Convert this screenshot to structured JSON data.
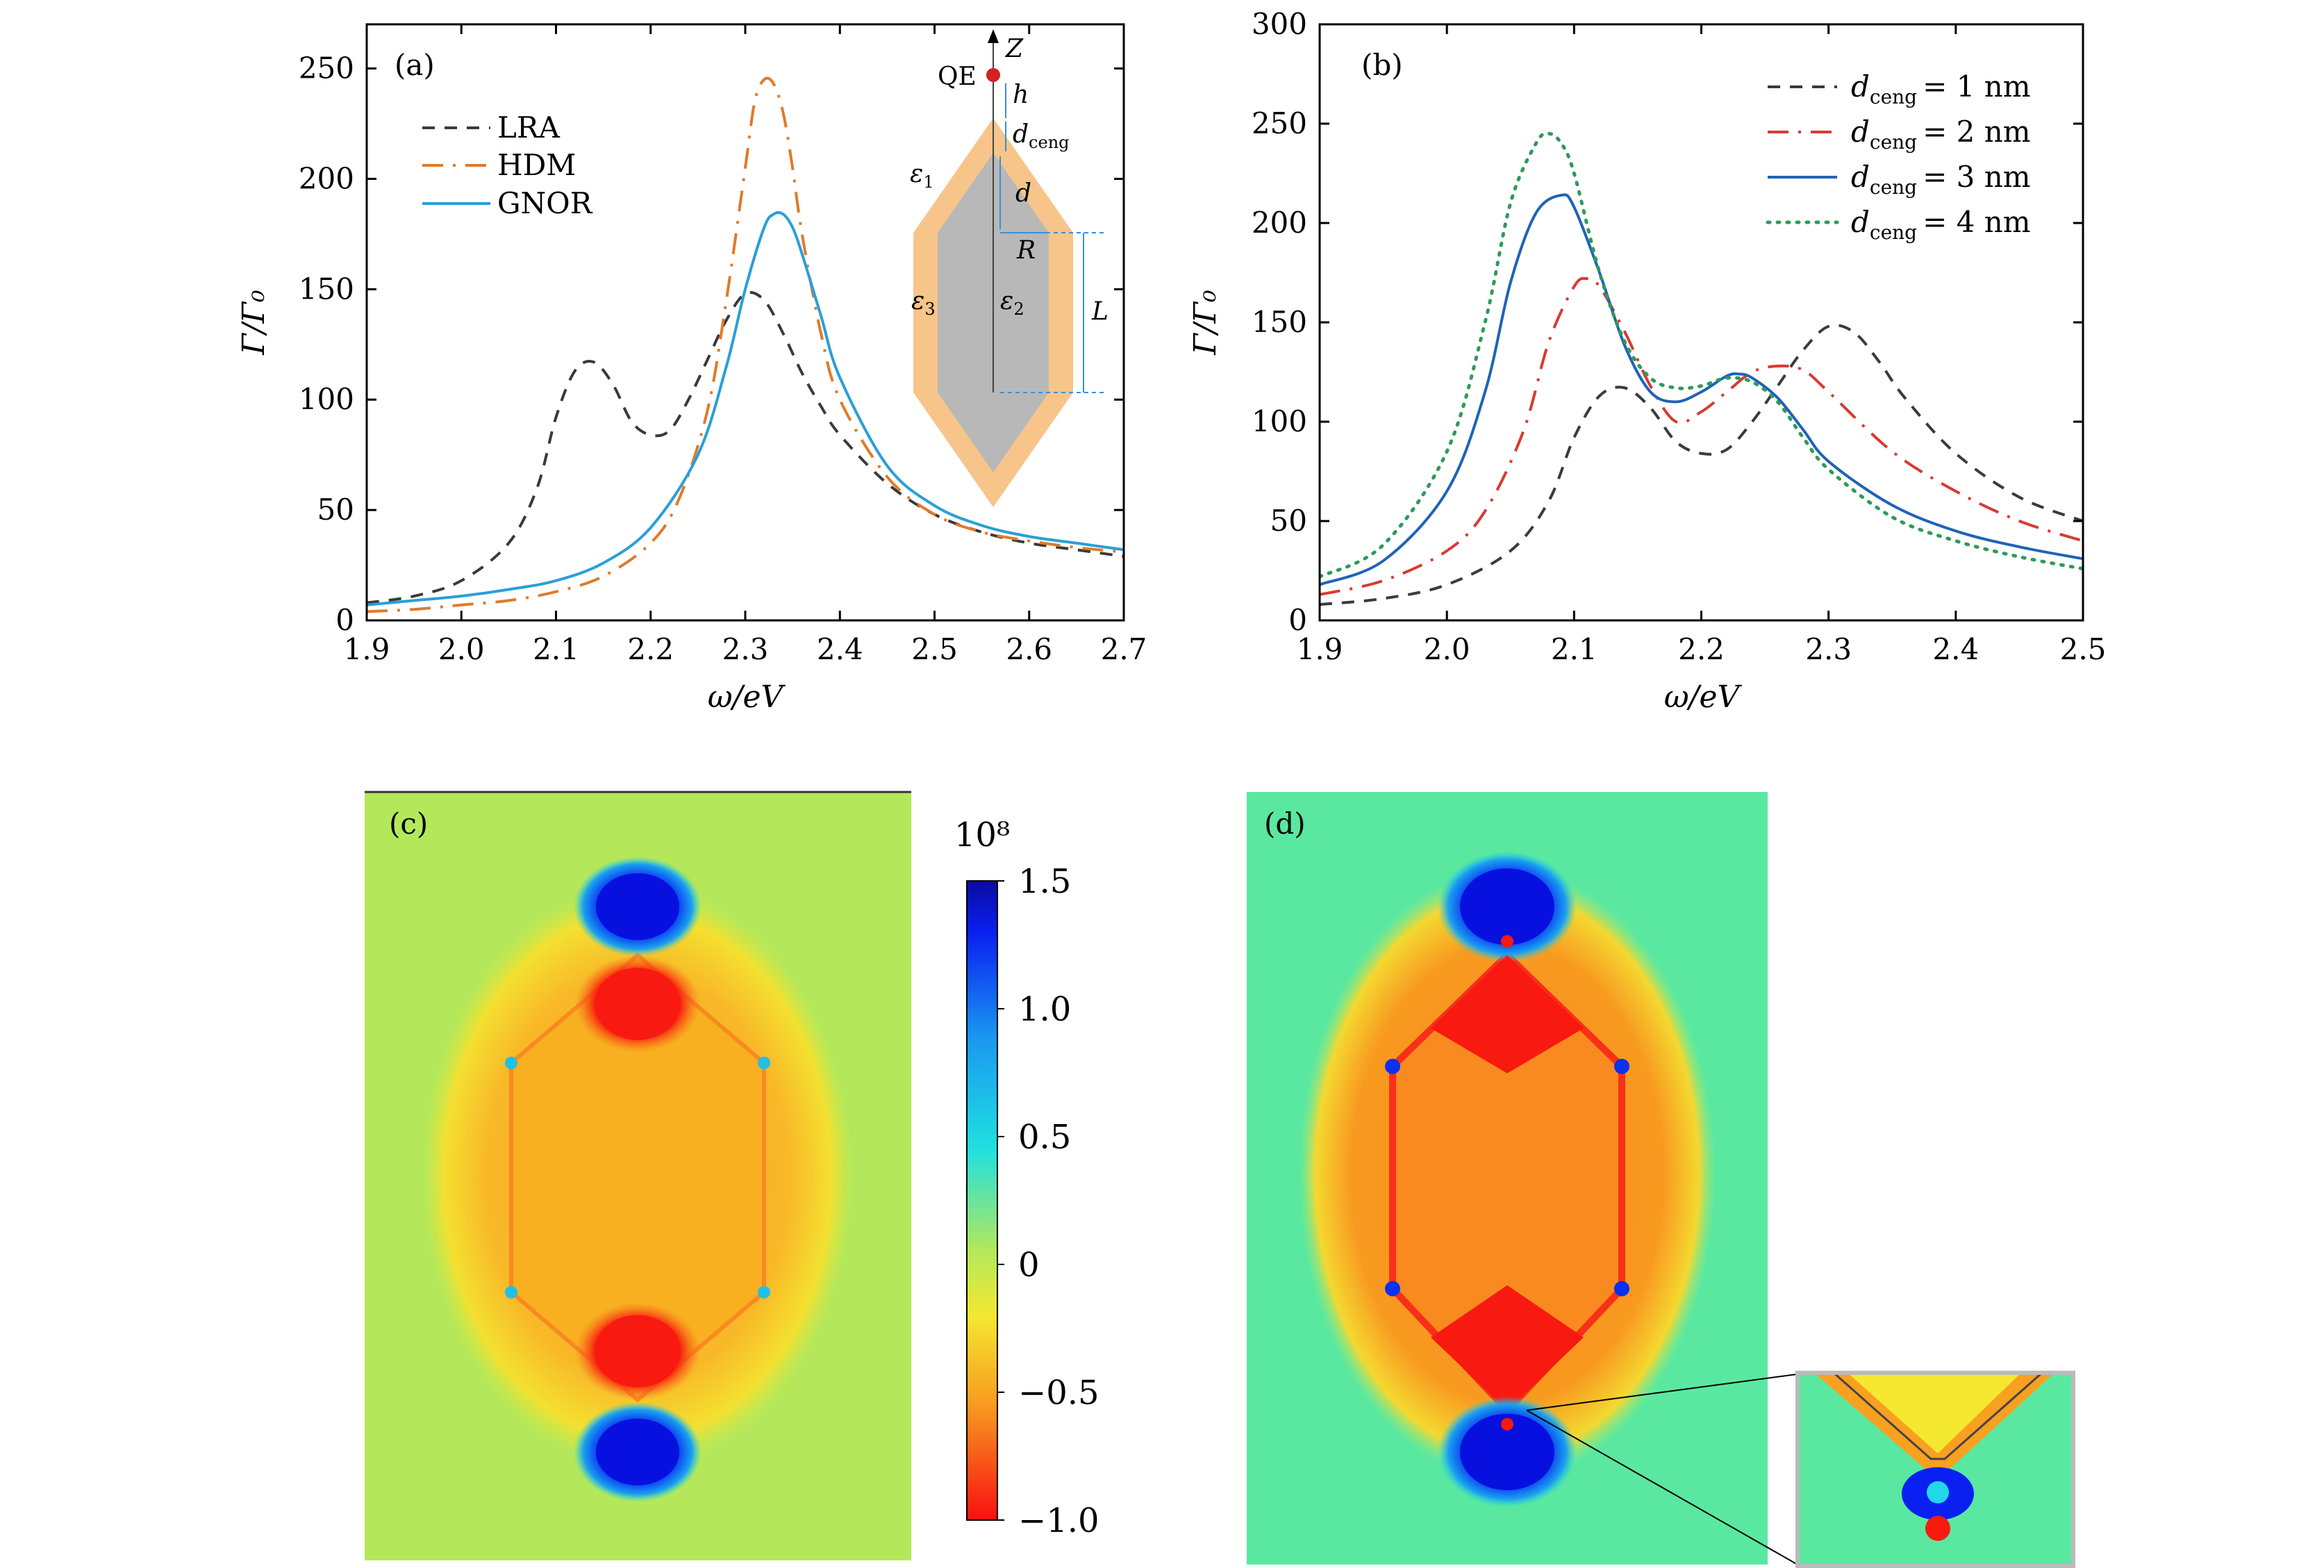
{
  "chart_data": [
    {
      "panel": "(a)",
      "type": "line",
      "xlabel": "ω/eV",
      "ylabel": "Γ/Γ₀",
      "xlim": [
        1.9,
        2.7
      ],
      "ylim": [
        0,
        270
      ],
      "xticks": [
        "1.9",
        "2.0",
        "2.1",
        "2.2",
        "2.3",
        "2.4",
        "2.5",
        "2.6",
        "2.7"
      ],
      "yticks": [
        "0",
        "50",
        "100",
        "150",
        "200",
        "250"
      ],
      "legend_position": "top-left",
      "series": [
        {
          "name": "LRA",
          "color": "#3a3a3a",
          "dash": "dash",
          "x": [
            1.9,
            1.95,
            2.0,
            2.05,
            2.08,
            2.1,
            2.12,
            2.14,
            2.16,
            2.18,
            2.2,
            2.22,
            2.24,
            2.26,
            2.28,
            2.3,
            2.32,
            2.34,
            2.36,
            2.38,
            2.4,
            2.45,
            2.5,
            2.55,
            2.6,
            2.65,
            2.7
          ],
          "y": [
            8,
            11,
            18,
            35,
            60,
            92,
            113,
            117,
            107,
            90,
            84,
            86,
            100,
            118,
            136,
            148,
            145,
            130,
            112,
            97,
            84,
            62,
            48,
            40,
            35,
            32,
            29
          ]
        },
        {
          "name": "HDM",
          "color": "#e07b28",
          "dash": "dashdot",
          "x": [
            1.9,
            1.95,
            2.0,
            2.05,
            2.1,
            2.15,
            2.2,
            2.23,
            2.26,
            2.28,
            2.3,
            2.31,
            2.32,
            2.33,
            2.34,
            2.35,
            2.36,
            2.38,
            2.4,
            2.45,
            2.5,
            2.55,
            2.6,
            2.65,
            2.7
          ],
          "y": [
            4,
            5,
            7,
            9,
            13,
            20,
            35,
            55,
            95,
            145,
            205,
            235,
            245,
            243,
            230,
            205,
            175,
            130,
            100,
            65,
            48,
            40,
            36,
            33,
            31
          ]
        },
        {
          "name": "GNOR",
          "color": "#2a9fd8",
          "dash": "solid",
          "x": [
            1.9,
            1.95,
            2.0,
            2.05,
            2.1,
            2.15,
            2.2,
            2.25,
            2.28,
            2.3,
            2.32,
            2.33,
            2.34,
            2.35,
            2.36,
            2.38,
            2.4,
            2.45,
            2.5,
            2.55,
            2.6,
            2.65,
            2.7
          ],
          "y": [
            7,
            9,
            11,
            14,
            18,
            26,
            42,
            75,
            115,
            150,
            178,
            184,
            184,
            178,
            166,
            138,
            110,
            70,
            52,
            43,
            38,
            35,
            32
          ]
        }
      ]
    },
    {
      "panel": "(b)",
      "type": "line",
      "xlabel": "ω/eV",
      "ylabel": "Γ/Γ₀",
      "xlim": [
        1.9,
        2.5
      ],
      "ylim": [
        0,
        300
      ],
      "xticks": [
        "1.9",
        "2.0",
        "2.1",
        "2.2",
        "2.3",
        "2.4",
        "2.5"
      ],
      "yticks": [
        "0",
        "50",
        "100",
        "150",
        "200",
        "250",
        "300"
      ],
      "legend_position": "top-right",
      "series": [
        {
          "name_main": "d",
          "name_sub": "ceng",
          "name_val": "= 1 nm",
          "color": "#3a3a3a",
          "dash": "dash",
          "x": [
            1.9,
            1.95,
            2.0,
            2.05,
            2.08,
            2.1,
            2.12,
            2.14,
            2.16,
            2.18,
            2.2,
            2.22,
            2.24,
            2.26,
            2.28,
            2.3,
            2.32,
            2.34,
            2.36,
            2.4,
            2.45,
            2.5
          ],
          "y": [
            8,
            11,
            18,
            35,
            60,
            92,
            113,
            117,
            107,
            90,
            84,
            86,
            100,
            118,
            136,
            148,
            145,
            130,
            112,
            84,
            62,
            50
          ]
        },
        {
          "name_main": "d",
          "name_sub": "ceng",
          "name_val": "= 2 nm",
          "color": "#d83a32",
          "dash": "dashdot",
          "x": [
            1.9,
            1.95,
            2.0,
            2.03,
            2.06,
            2.08,
            2.1,
            2.11,
            2.12,
            2.14,
            2.16,
            2.18,
            2.2,
            2.22,
            2.24,
            2.26,
            2.28,
            2.3,
            2.35,
            2.4,
            2.45,
            2.5
          ],
          "y": [
            13,
            20,
            35,
            55,
            95,
            140,
            168,
            172,
            168,
            145,
            118,
            100,
            105,
            115,
            125,
            128,
            126,
            115,
            85,
            65,
            50,
            40
          ]
        },
        {
          "name_main": "d",
          "name_sub": "ceng",
          "name_val": "= 3 nm",
          "color": "#1f63b8",
          "dash": "solid",
          "x": [
            1.9,
            1.95,
            2.0,
            2.03,
            2.05,
            2.07,
            2.09,
            2.1,
            2.12,
            2.14,
            2.16,
            2.18,
            2.2,
            2.22,
            2.23,
            2.24,
            2.26,
            2.28,
            2.3,
            2.35,
            2.4,
            2.45,
            2.5
          ],
          "y": [
            18,
            30,
            65,
            115,
            170,
            205,
            214,
            208,
            175,
            138,
            115,
            110,
            115,
            123,
            124,
            122,
            112,
            96,
            80,
            58,
            45,
            37,
            31
          ]
        },
        {
          "name_main": "d",
          "name_sub": "ceng",
          "name_val": "= 4 nm",
          "color": "#2e9a5a",
          "dash": "dot",
          "x": [
            1.9,
            1.95,
            2.0,
            2.03,
            2.05,
            2.07,
            2.08,
            2.09,
            2.1,
            2.12,
            2.14,
            2.16,
            2.18,
            2.2,
            2.22,
            2.24,
            2.26,
            2.28,
            2.3,
            2.35,
            2.4,
            2.45,
            2.5
          ],
          "y": [
            22,
            38,
            85,
            150,
            210,
            240,
            245,
            240,
            225,
            175,
            140,
            122,
            117,
            118,
            122,
            120,
            110,
            92,
            76,
            52,
            40,
            32,
            26
          ]
        }
      ]
    }
  ],
  "inset_diagram": {
    "qe": "QE",
    "z": "Z",
    "h": "h",
    "dceng_main": "d",
    "dceng_sub": "ceng",
    "d": "d",
    "r": "R",
    "l": "L",
    "eps1_main": "ε",
    "eps1_sub": "1",
    "eps2_main": "ε",
    "eps2_sub": "2",
    "eps3_main": "ε",
    "eps3_sub": "3",
    "colors": {
      "shell": "#f7c58a",
      "core": "#b8b8b8",
      "qe": "#d42020",
      "dim": "#3a8fd8"
    }
  },
  "field_maps": {
    "panel_c": "(c)",
    "panel_d": "(d)",
    "colorbar": {
      "exponent": "10⁸",
      "ticks": [
        "1.5",
        "1.0",
        "0.5",
        "0",
        "−0.5",
        "−1.0"
      ]
    },
    "colors": {
      "blue": "#0a1ee8",
      "cyan": "#20d8e8",
      "green_bg_c": "#b4e85a",
      "green_bg_d": "#5ae8a0",
      "yellow": "#f4e830",
      "orange": "#f8a020",
      "red": "#f81a10"
    }
  }
}
